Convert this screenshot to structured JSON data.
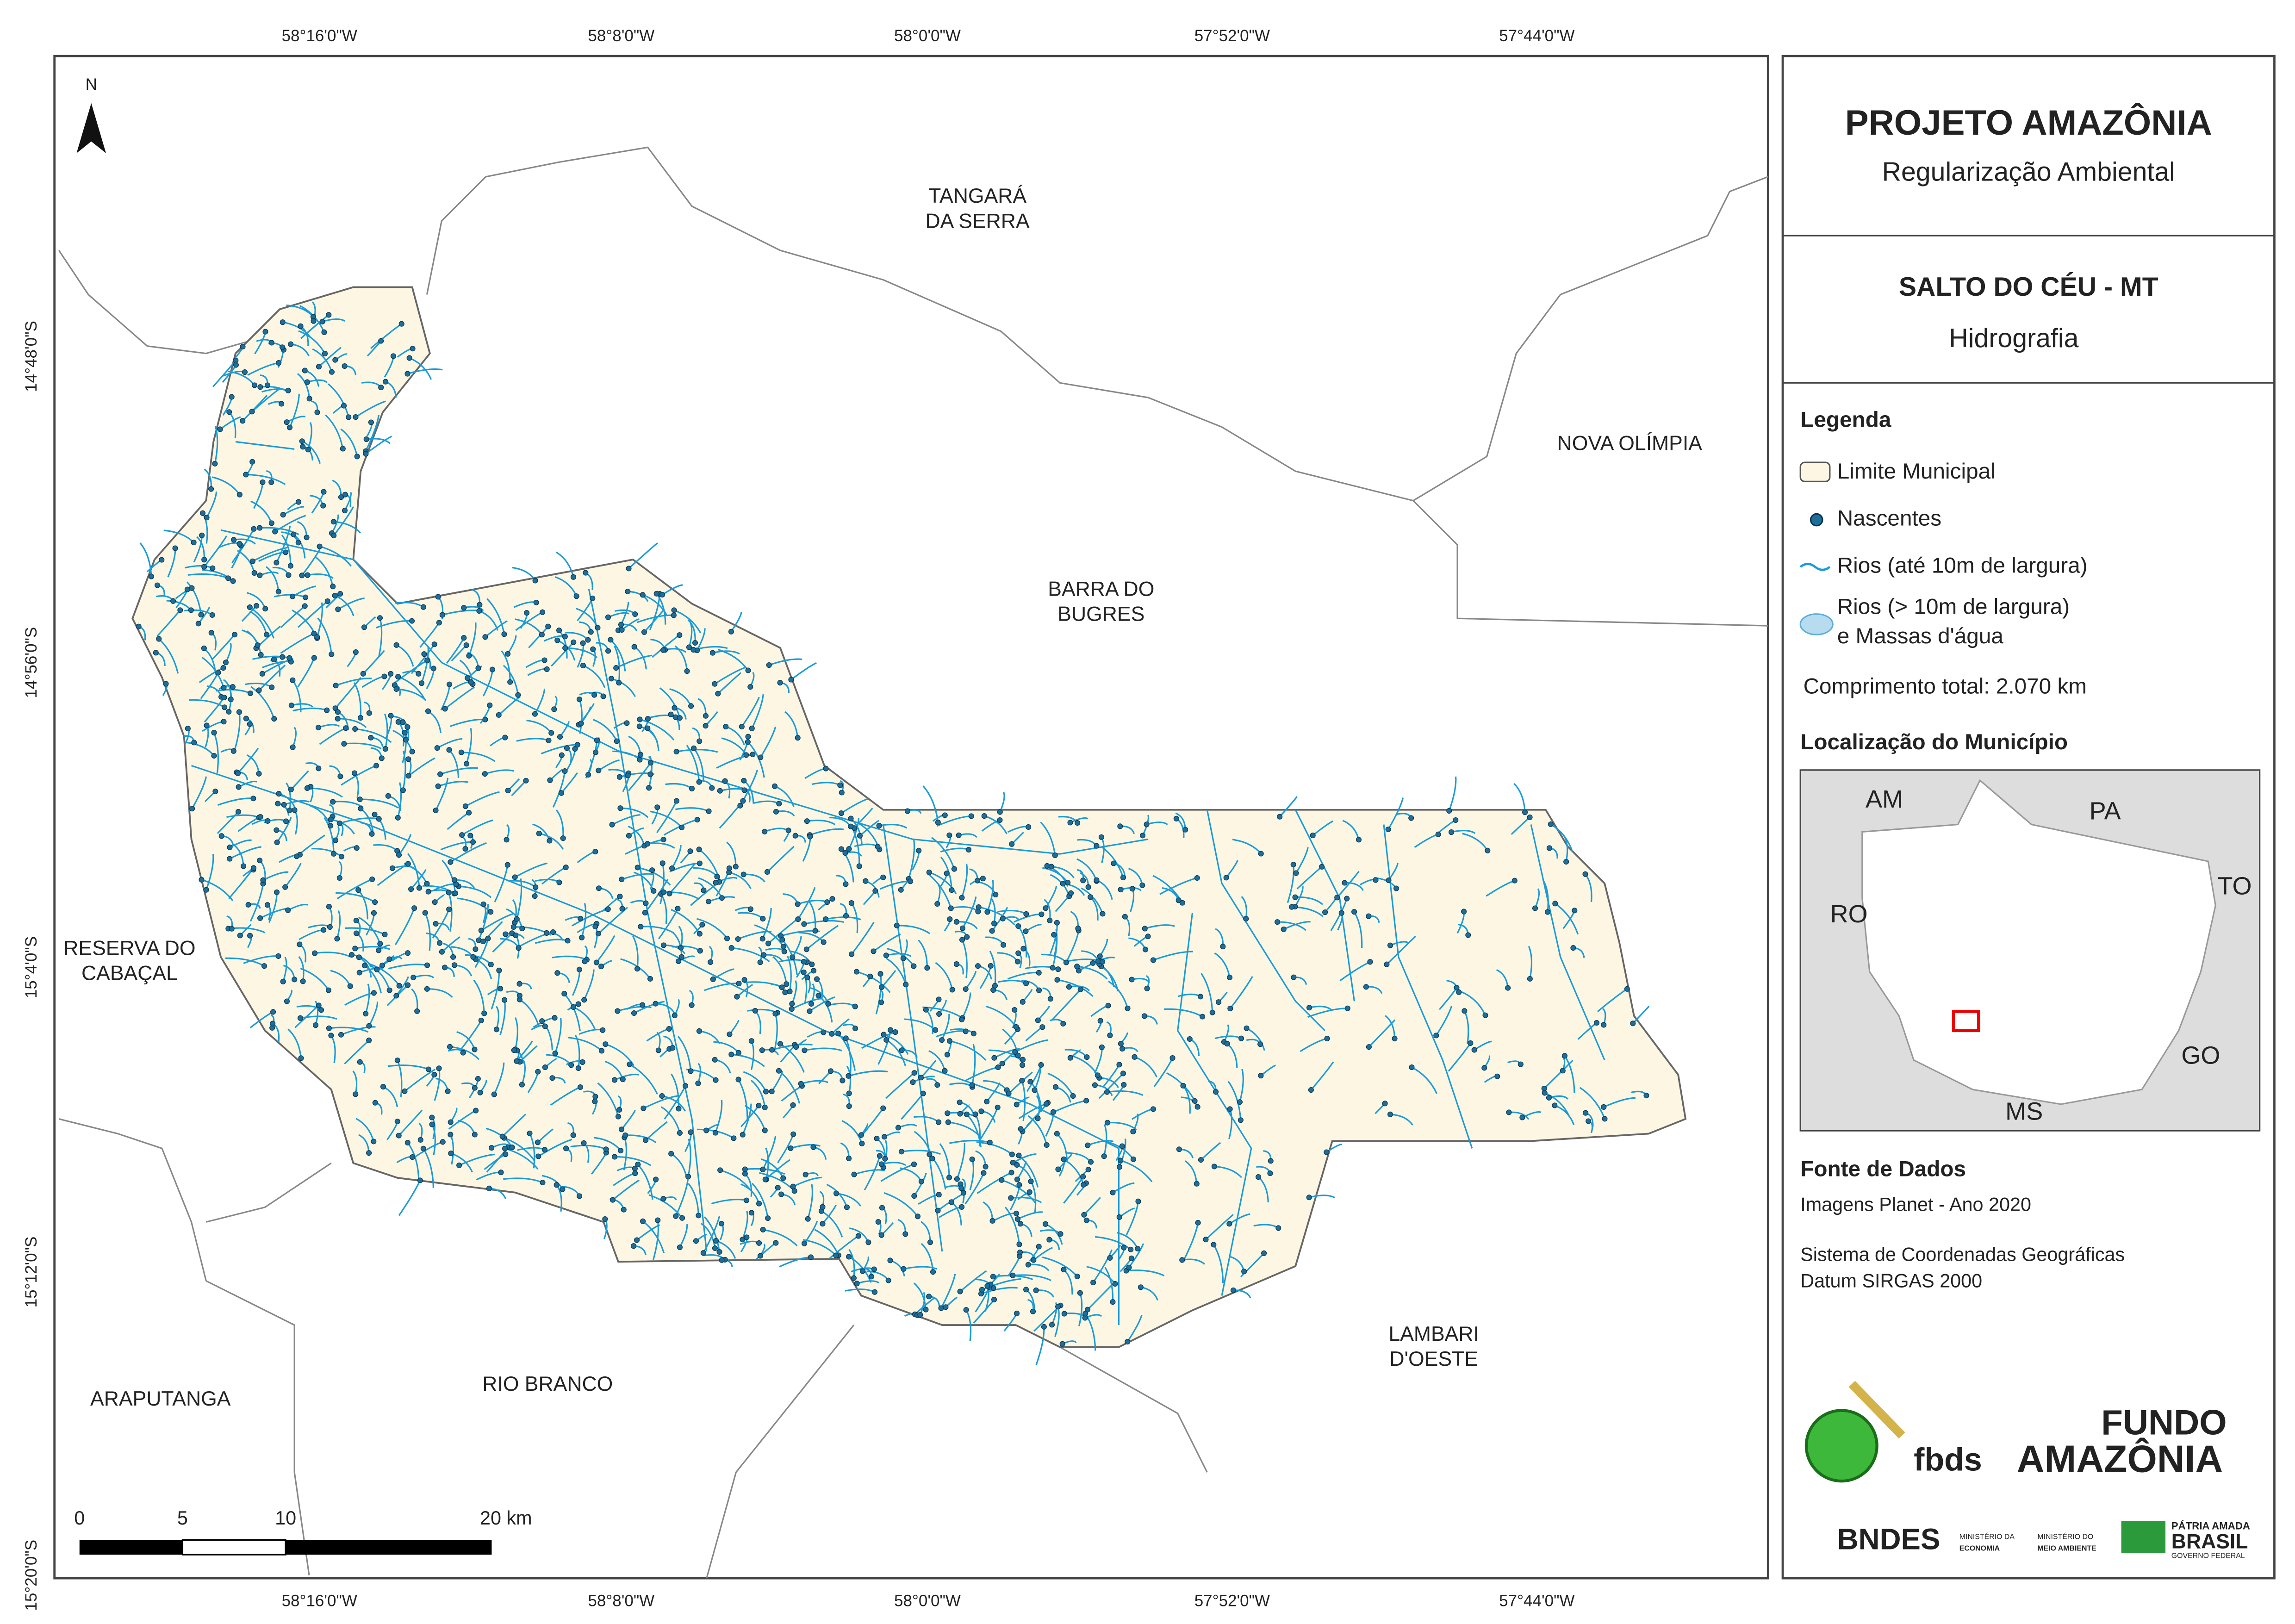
{
  "map": {
    "north_arrow": "N",
    "top_ticks": [
      "58°16'0\"W",
      "58°8'0\"W",
      "58°0'0\"W",
      "57°52'0\"W",
      "57°44'0\"W"
    ],
    "bottom_ticks": [
      "58°16'0\"W",
      "58°8'0\"W",
      "58°0'0\"W",
      "57°52'0\"W",
      "57°44'0\"W"
    ],
    "left_ticks": [
      "14°48'0\"S",
      "14°56'0\"S",
      "15°4'0\"S",
      "15°12'0\"S",
      "15°20'0\"S"
    ],
    "places": [
      {
        "lines": [
          "TANGARÁ",
          "DA SERRA"
        ]
      },
      {
        "lines": [
          "NOVA OLÍMPIA"
        ]
      },
      {
        "lines": [
          "BARRA DO",
          "BUGRES"
        ]
      },
      {
        "lines": [
          "RESERVA DO",
          "CABAÇAL"
        ]
      },
      {
        "lines": [
          "LAMBARI",
          "D'OESTE"
        ]
      },
      {
        "lines": [
          "RIO BRANCO"
        ]
      },
      {
        "lines": [
          "ARAPUTANGA"
        ]
      }
    ],
    "scale_labels": [
      "0",
      "5",
      "10",
      "20 km"
    ]
  },
  "panel": {
    "title": "PROJETO AMAZÔNIA",
    "subtitle": "Regularização Ambiental",
    "municipality": "SALTO DO CÉU - MT",
    "theme": "Hidrografia",
    "legend_title": "Legenda",
    "legend_items": [
      "Limite Municipal",
      "Nascentes",
      "Rios (até 10m de largura)",
      "Rios (> 10m de largura)",
      "e Massas d'água"
    ],
    "total_length": "Comprimento total: 2.070 km",
    "location_title": "Localização do Município",
    "inset_labels": [
      "AM",
      "PA",
      "RO",
      "TO",
      "GO",
      "MS"
    ],
    "sources_title": "Fonte de Dados",
    "sources": [
      "Imagens Planet - Ano 2020",
      "Sistema de Coordenadas Geográficas",
      "Datum SIRGAS 2000"
    ],
    "logos": [
      "fbds",
      "FUNDO",
      "AMAZÔNIA",
      "BNDES",
      "MINISTÉRIO DA",
      "ECONOMIA",
      "MINISTÉRIO DO",
      "MEIO AMBIENTE",
      "PÁTRIA AMADA",
      "BRASIL",
      "GOVERNO FEDERAL"
    ]
  }
}
